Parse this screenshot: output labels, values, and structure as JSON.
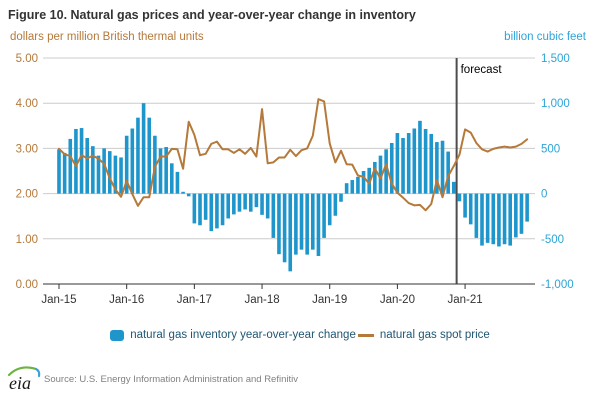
{
  "title": "Figure 10. Natural gas prices and year-over-year change in inventory",
  "left_axis": {
    "label": "dollars per million British thermal units",
    "ticks": [
      "0.00",
      "1.00",
      "2.00",
      "3.00",
      "4.00",
      "5.00"
    ],
    "min": 0,
    "max": 5,
    "color": "#b5793a"
  },
  "right_axis": {
    "label": "billion cubic feet",
    "ticks": [
      "-1,000",
      "-500",
      "0",
      "500",
      "1,000",
      "1,500"
    ],
    "min": -1000,
    "max": 1500,
    "color": "#2da4d8"
  },
  "x_axis": {
    "ticks": [
      "Jan-15",
      "Jan-16",
      "Jan-17",
      "Jan-18",
      "Jan-19",
      "Jan-20",
      "Jan-21"
    ],
    "tick_interval_months": 12
  },
  "forecast": {
    "label": "forecast",
    "position_month_index": 70.5,
    "line_color": "#4d4d4d"
  },
  "chart_data": {
    "type": "bar",
    "subtype": "combo-bar-line-dual-axis",
    "x_start": "Jan-2015",
    "x_end": "Dec-2021",
    "frequency": "monthly",
    "grid": true,
    "series": [
      {
        "name": "natural gas inventory year-over-year change",
        "type": "bar",
        "axis": "right",
        "unit": "billion cubic feet",
        "color": "#1e96cc",
        "values": [
          490,
          450,
          605,
          715,
          725,
          615,
          525,
          420,
          500,
          470,
          420,
          400,
          640,
          720,
          840,
          1000,
          840,
          640,
          500,
          515,
          335,
          240,
          20,
          -30,
          -330,
          -350,
          -290,
          -415,
          -385,
          -350,
          -275,
          -230,
          -200,
          -175,
          -200,
          -150,
          -235,
          -275,
          -490,
          -670,
          -760,
          -860,
          -675,
          -620,
          -675,
          -620,
          -690,
          -490,
          -350,
          -245,
          -90,
          115,
          150,
          185,
          250,
          285,
          350,
          420,
          490,
          560,
          670,
          615,
          670,
          720,
          805,
          715,
          660,
          570,
          585,
          465,
          130,
          -85,
          -265,
          -340,
          -490,
          -575,
          -545,
          -560,
          -585,
          -560,
          -575,
          -485,
          -445,
          -310
        ]
      },
      {
        "name": "natural gas spot price",
        "type": "line",
        "axis": "left",
        "unit": "dollars per million British thermal units",
        "color": "#b5793a",
        "values": [
          2.99,
          2.87,
          2.83,
          2.61,
          2.85,
          2.78,
          2.84,
          2.77,
          2.66,
          2.34,
          2.09,
          1.93,
          2.28,
          1.99,
          1.73,
          1.92,
          1.92,
          2.59,
          2.82,
          2.82,
          2.99,
          2.98,
          2.55,
          3.59,
          3.3,
          2.85,
          2.88,
          3.1,
          3.15,
          2.98,
          2.98,
          2.9,
          2.98,
          2.88,
          3.01,
          2.82,
          3.87,
          2.67,
          2.69,
          2.8,
          2.8,
          2.97,
          2.83,
          2.96,
          3.0,
          3.28,
          4.09,
          4.04,
          3.11,
          2.69,
          2.95,
          2.65,
          2.64,
          2.4,
          2.37,
          2.22,
          2.56,
          2.33,
          2.65,
          2.22,
          2.02,
          1.91,
          1.79,
          1.74,
          1.75,
          1.63,
          1.77,
          2.3,
          1.92,
          2.39,
          2.61,
          2.86,
          3.42,
          3.35,
          3.12,
          2.98,
          2.93,
          2.99,
          3.02,
          3.04,
          3.02,
          3.04,
          3.1,
          3.2
        ]
      }
    ]
  },
  "legend": [
    {
      "label": "natural gas inventory year-over-year change",
      "color": "#1e96cc"
    },
    {
      "label": "natural gas spot price",
      "color": "#b5793a"
    }
  ],
  "footer": {
    "source": "Source: U.S. Energy Information Administration and Refinitiv",
    "logo_text": "eia"
  }
}
